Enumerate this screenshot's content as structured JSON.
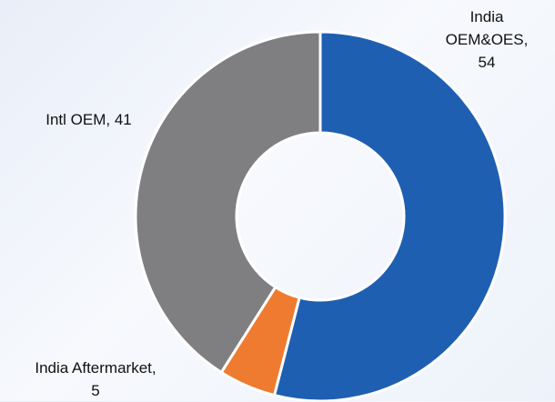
{
  "chart_data": {
    "type": "donut",
    "categories": [
      "India OEM&OES",
      "India Aftermarket",
      "Intl OEM"
    ],
    "values": [
      54,
      5,
      41
    ],
    "colors": [
      "#1f5fb1",
      "#ee7b30",
      "#7f7f81"
    ]
  }
}
